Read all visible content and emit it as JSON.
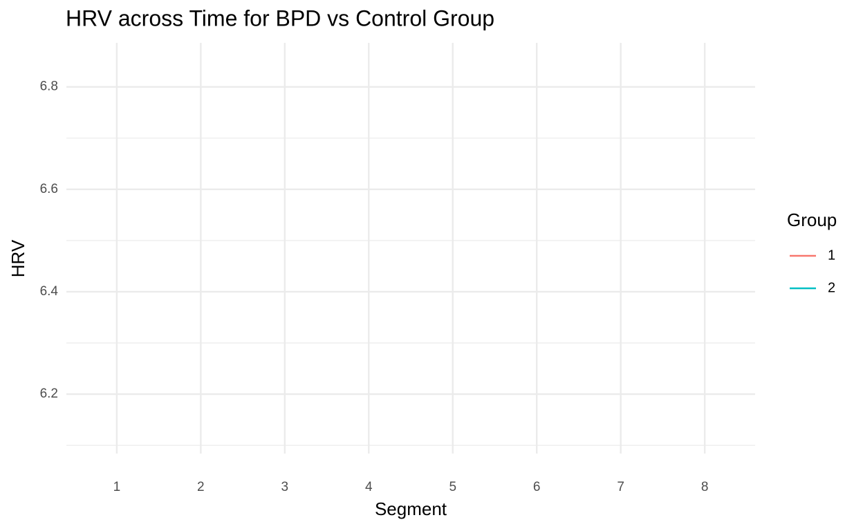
{
  "chart_data": {
    "type": "line",
    "title": "HRV across Time for BPD vs Control Group",
    "x_label": "Segment",
    "y_label": "HRV",
    "categories": [
      "1",
      "2",
      "3",
      "4",
      "5",
      "6",
      "7",
      "8"
    ],
    "series": [
      {
        "name": "1",
        "color": "#F8766D",
        "values": [
          null,
          null,
          null,
          null,
          null,
          null,
          null,
          null
        ]
      },
      {
        "name": "2",
        "color": "#00BFC4",
        "values": [
          null,
          null,
          null,
          null,
          null,
          null,
          null,
          null
        ]
      }
    ],
    "ylim": [
      6.084,
      6.886
    ],
    "yticks": [
      6.2,
      6.4,
      6.6,
      6.8
    ],
    "yminor": [
      6.1,
      6.3,
      6.5,
      6.7
    ],
    "grid": true,
    "legend_title": "Group",
    "legend": "right"
  }
}
